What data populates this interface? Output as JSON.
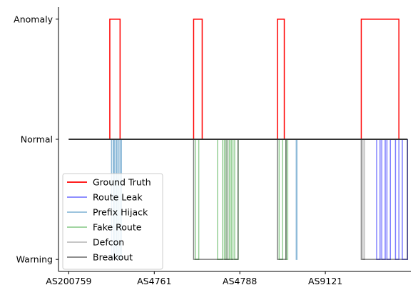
{
  "chart_data": {
    "type": "line",
    "title": "",
    "xlabel": "",
    "ylabel": "",
    "y_ticks": [
      {
        "label": "Anomaly",
        "value": 1
      },
      {
        "label": "Normal",
        "value": 0
      },
      {
        "label": "Warning",
        "value": -1
      }
    ],
    "ylim": [
      -1.1,
      1.1
    ],
    "xlim": [
      -3,
      100
    ],
    "x_ticks": [
      {
        "label": "AS200759",
        "value": 0
      },
      {
        "label": "AS4761",
        "value": 25
      },
      {
        "label": "AS4788",
        "value": 50
      },
      {
        "label": "AS9121",
        "value": 75
      }
    ],
    "grid": false,
    "legend_position": "lower-left",
    "legend_order": [
      "ground_truth",
      "route_leak",
      "prefix_hijack",
      "fake_route",
      "defcon",
      "breakout"
    ],
    "series": {
      "ground_truth": {
        "name": "Ground Truth",
        "color": "#ff0000",
        "opacity": 1,
        "intervals": [
          [
            12,
            15
          ],
          [
            36.5,
            39
          ],
          [
            61,
            63
          ],
          [
            85.5,
            96.5
          ]
        ],
        "points": [
          [
            0,
            0
          ],
          [
            99,
            0
          ]
        ]
      },
      "route_leak": {
        "name": "Route Leak",
        "color": "#0000ff",
        "opacity": 0.5,
        "points": [
          [
            0,
            0
          ],
          [
            90,
            0
          ],
          [
            90,
            -1
          ],
          [
            91,
            -1
          ],
          [
            91,
            0
          ],
          [
            91.5,
            0
          ],
          [
            91.5,
            -1
          ],
          [
            92.5,
            -1
          ],
          [
            92.5,
            0
          ],
          [
            93,
            0
          ],
          [
            93,
            -1
          ],
          [
            94,
            -1
          ],
          [
            94,
            0
          ],
          [
            95.5,
            0
          ],
          [
            95.5,
            -1
          ],
          [
            96.5,
            -1
          ],
          [
            96.5,
            0
          ],
          [
            97.5,
            0
          ],
          [
            97.5,
            -1
          ],
          [
            99,
            -1
          ],
          [
            99,
            0
          ]
        ]
      },
      "prefix_hijack": {
        "name": "Prefix Hijack",
        "color": "#1f77b4",
        "opacity": 0.5,
        "points": [
          [
            0,
            0
          ],
          [
            12.5,
            0
          ],
          [
            12.5,
            -1
          ],
          [
            13,
            -1
          ],
          [
            13,
            0
          ],
          [
            13.3,
            0
          ],
          [
            13.3,
            -1
          ],
          [
            13.8,
            -1
          ],
          [
            13.8,
            0
          ],
          [
            14.1,
            0
          ],
          [
            14.1,
            -1
          ],
          [
            14.6,
            -1
          ],
          [
            14.6,
            0
          ],
          [
            15,
            0
          ],
          [
            15,
            -1
          ],
          [
            15.4,
            -1
          ],
          [
            15.4,
            0
          ],
          [
            66.5,
            0
          ],
          [
            66.5,
            -1
          ],
          [
            66.7,
            -1
          ],
          [
            66.7,
            0
          ],
          [
            99,
            0
          ]
        ]
      },
      "fake_route": {
        "name": "Fake Route",
        "color": "#2ca02c",
        "opacity": 0.5,
        "points": [
          [
            0,
            0
          ],
          [
            37,
            0
          ],
          [
            37,
            -1
          ],
          [
            38,
            -1
          ],
          [
            38,
            0
          ],
          [
            43.5,
            0
          ],
          [
            43.5,
            -1
          ],
          [
            45,
            -1
          ],
          [
            45,
            0
          ],
          [
            45.5,
            0
          ],
          [
            45.5,
            -1
          ],
          [
            46,
            -1
          ],
          [
            46,
            0
          ],
          [
            46.5,
            0
          ],
          [
            46.5,
            -1
          ],
          [
            47,
            -1
          ],
          [
            47,
            0
          ],
          [
            47.5,
            0
          ],
          [
            47.5,
            -1
          ],
          [
            48,
            -1
          ],
          [
            48,
            0
          ],
          [
            48.5,
            0
          ],
          [
            48.5,
            -1
          ],
          [
            49.5,
            -1
          ],
          [
            49.5,
            0
          ],
          [
            61.5,
            0
          ],
          [
            61.5,
            -1
          ],
          [
            62.5,
            -1
          ],
          [
            62.5,
            0
          ],
          [
            63.5,
            0
          ],
          [
            63.5,
            -1
          ],
          [
            64,
            -1
          ],
          [
            64,
            0
          ],
          [
            99,
            0
          ]
        ]
      },
      "defcon": {
        "name": "Defcon",
        "color": "#7f7f7f",
        "opacity": 0.5,
        "points": [
          [
            0,
            0
          ],
          [
            46,
            0
          ],
          [
            46,
            -1
          ],
          [
            46.5,
            -1
          ],
          [
            46.5,
            0
          ],
          [
            86,
            0
          ],
          [
            86,
            -1
          ],
          [
            86.5,
            -1
          ],
          [
            86.5,
            0
          ],
          [
            99,
            0
          ]
        ]
      },
      "breakout": {
        "name": "Breakout",
        "color": "#000000",
        "opacity": 0.5,
        "points": [
          [
            0,
            0
          ],
          [
            36.5,
            0
          ],
          [
            36.5,
            -1
          ],
          [
            49.5,
            -1
          ],
          [
            49.5,
            0
          ],
          [
            61,
            0
          ],
          [
            61,
            -1
          ],
          [
            63.5,
            -1
          ],
          [
            63.5,
            0
          ],
          [
            85.5,
            0
          ],
          [
            85.5,
            -1
          ],
          [
            99,
            -1
          ],
          [
            99,
            0
          ]
        ]
      }
    },
    "normal_line": {
      "color": "#333333",
      "value": 0,
      "range": [
        0,
        99
      ]
    }
  }
}
